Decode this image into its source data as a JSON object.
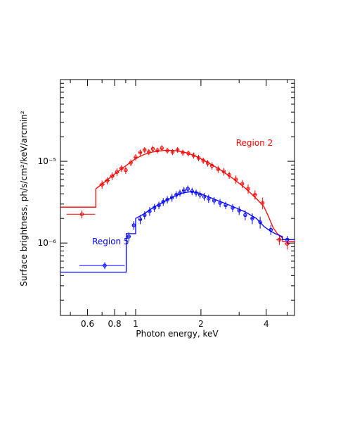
{
  "chart_data": {
    "type": "scatter",
    "title": "",
    "xlabel": "Photon energy, keV",
    "ylabel": "Surface brightness, ph/s/cm²/keV/arcmin²",
    "xscale": "log",
    "yscale": "log",
    "xlim": [
      0.45,
      5.4
    ],
    "ylim": [
      1.3e-07,
      0.0001
    ],
    "grid": false,
    "x_ticks": [
      {
        "value": 0.6,
        "label": "0.6"
      },
      {
        "value": 0.8,
        "label": "0.8"
      },
      {
        "value": 1,
        "label": "1"
      },
      {
        "value": 2,
        "label": "2"
      },
      {
        "value": 4,
        "label": "4"
      }
    ],
    "y_ticks": [
      {
        "value": 1e-06,
        "label": "10⁻⁶"
      },
      {
        "value": 1e-05,
        "label": "10⁻⁵"
      }
    ],
    "series": [
      {
        "name": "Region 2",
        "color": "#ff0000",
        "points": [
          {
            "x": 0.565,
            "y": 2.25e-06,
            "xerr": 0.085,
            "yerr": 2.5e-07
          },
          {
            "x": 0.7,
            "y": 5.2e-06,
            "xerr": 0.02,
            "yerr": 6e-07
          },
          {
            "x": 0.74,
            "y": 5.8e-06,
            "xerr": 0.02,
            "yerr": 6e-07
          },
          {
            "x": 0.78,
            "y": 6.6e-06,
            "xerr": 0.02,
            "yerr": 7e-07
          },
          {
            "x": 0.82,
            "y": 7.4e-06,
            "xerr": 0.02,
            "yerr": 8e-07
          },
          {
            "x": 0.86,
            "y": 8.2e-06,
            "xerr": 0.02,
            "yerr": 8e-07
          },
          {
            "x": 0.9,
            "y": 7.8e-06,
            "xerr": 0.02,
            "yerr": 8e-07
          },
          {
            "x": 0.95,
            "y": 9.6e-06,
            "xerr": 0.02,
            "yerr": 9e-07
          },
          {
            "x": 1.0,
            "y": 1.12e-05,
            "xerr": 0.02,
            "yerr": 1e-06
          },
          {
            "x": 1.05,
            "y": 1.28e-05,
            "xerr": 0.02,
            "yerr": 1.1e-06
          },
          {
            "x": 1.1,
            "y": 1.38e-05,
            "xerr": 0.02,
            "yerr": 1.1e-06
          },
          {
            "x": 1.15,
            "y": 1.3e-05,
            "xerr": 0.02,
            "yerr": 1.1e-06
          },
          {
            "x": 1.2,
            "y": 1.42e-05,
            "xerr": 0.02,
            "yerr": 1.2e-06
          },
          {
            "x": 1.26,
            "y": 1.36e-05,
            "xerr": 0.02,
            "yerr": 1.1e-06
          },
          {
            "x": 1.32,
            "y": 1.45e-05,
            "xerr": 0.02,
            "yerr": 1.2e-06
          },
          {
            "x": 1.4,
            "y": 1.35e-05,
            "xerr": 0.02,
            "yerr": 1.1e-06
          },
          {
            "x": 1.48,
            "y": 1.3e-05,
            "xerr": 0.02,
            "yerr": 1.1e-06
          },
          {
            "x": 1.56,
            "y": 1.38e-05,
            "xerr": 0.02,
            "yerr": 1.1e-06
          },
          {
            "x": 1.65,
            "y": 1.28e-05,
            "xerr": 0.02,
            "yerr": 1.1e-06
          },
          {
            "x": 1.75,
            "y": 1.25e-05,
            "xerr": 0.02,
            "yerr": 1e-06
          },
          {
            "x": 1.85,
            "y": 1.18e-05,
            "xerr": 0.02,
            "yerr": 1e-06
          },
          {
            "x": 1.95,
            "y": 1.1e-05,
            "xerr": 0.02,
            "yerr": 1e-06
          },
          {
            "x": 2.05,
            "y": 1.02e-05,
            "xerr": 0.02,
            "yerr": 9e-07
          },
          {
            "x": 2.15,
            "y": 9.5e-06,
            "xerr": 0.02,
            "yerr": 9e-07
          },
          {
            "x": 2.25,
            "y": 8.8e-06,
            "xerr": 0.03,
            "yerr": 9e-07
          },
          {
            "x": 2.4,
            "y": 8e-06,
            "xerr": 0.03,
            "yerr": 8e-07
          },
          {
            "x": 2.55,
            "y": 7.5e-06,
            "xerr": 0.03,
            "yerr": 8e-07
          },
          {
            "x": 2.7,
            "y": 6.8e-06,
            "xerr": 0.03,
            "yerr": 7e-07
          },
          {
            "x": 2.9,
            "y": 6e-06,
            "xerr": 0.04,
            "yerr": 7e-07
          },
          {
            "x": 3.1,
            "y": 5.3e-06,
            "xerr": 0.04,
            "yerr": 6e-07
          },
          {
            "x": 3.3,
            "y": 4.6e-06,
            "xerr": 0.05,
            "yerr": 6e-07
          },
          {
            "x": 3.55,
            "y": 3.9e-06,
            "xerr": 0.05,
            "yerr": 5e-07
          },
          {
            "x": 3.85,
            "y": 3.1e-06,
            "xerr": 0.06,
            "yerr": 5e-07
          },
          {
            "x": 4.6,
            "y": 1.1e-06,
            "xerr": 0.15,
            "yerr": 1.5e-07
          },
          {
            "x": 5.0,
            "y": 9.8e-07,
            "xerr": 0.15,
            "yerr": 1.5e-07
          }
        ],
        "model": [
          [
            0.45,
            2.75e-06
          ],
          [
            0.655,
            2.75e-06
          ],
          [
            0.655,
            4.6e-06
          ],
          [
            0.72,
            5.6e-06
          ],
          [
            0.8,
            7e-06
          ],
          [
            0.9,
            8.8e-06
          ],
          [
            1.0,
            1.08e-05
          ],
          [
            1.1,
            1.22e-05
          ],
          [
            1.2,
            1.3e-05
          ],
          [
            1.35,
            1.36e-05
          ],
          [
            1.5,
            1.36e-05
          ],
          [
            1.7,
            1.28e-05
          ],
          [
            1.9,
            1.15e-05
          ],
          [
            2.1,
            1e-05
          ],
          [
            2.4,
            8.2e-06
          ],
          [
            2.8,
            6.2e-06
          ],
          [
            3.2,
            4.7e-06
          ],
          [
            3.6,
            3.5e-06
          ],
          [
            3.9,
            2.8e-06
          ],
          [
            4.1,
            2.1e-06
          ],
          [
            4.3,
            1.55e-06
          ],
          [
            4.5,
            1.3e-06
          ],
          [
            4.75,
            1.15e-06
          ],
          [
            4.75,
            1.05e-06
          ],
          [
            5.4,
            1.05e-06
          ]
        ]
      },
      {
        "name": "Region 5",
        "color": "#0000ff",
        "points": [
          {
            "x": 0.72,
            "y": 5.3e-07,
            "xerr": 0.17,
            "yerr": 5e-08
          },
          {
            "x": 0.93,
            "y": 1.2e-06,
            "xerr": 0.02,
            "yerr": 1.5e-07
          },
          {
            "x": 0.98,
            "y": 1.65e-06,
            "xerr": 0.02,
            "yerr": 2e-07
          },
          {
            "x": 1.05,
            "y": 1.95e-06,
            "xerr": 0.02,
            "yerr": 2.5e-07
          },
          {
            "x": 1.1,
            "y": 2.2e-06,
            "xerr": 0.02,
            "yerr": 2.5e-07
          },
          {
            "x": 1.16,
            "y": 2.45e-06,
            "xerr": 0.02,
            "yerr": 3e-07
          },
          {
            "x": 1.22,
            "y": 2.7e-06,
            "xerr": 0.02,
            "yerr": 3e-07
          },
          {
            "x": 1.28,
            "y": 2.9e-06,
            "xerr": 0.02,
            "yerr": 3e-07
          },
          {
            "x": 1.34,
            "y": 3.2e-06,
            "xerr": 0.02,
            "yerr": 3.5e-07
          },
          {
            "x": 1.4,
            "y": 3.4e-06,
            "xerr": 0.02,
            "yerr": 3.5e-07
          },
          {
            "x": 1.47,
            "y": 3.6e-06,
            "xerr": 0.02,
            "yerr": 4e-07
          },
          {
            "x": 1.54,
            "y": 3.9e-06,
            "xerr": 0.02,
            "yerr": 4e-07
          },
          {
            "x": 1.6,
            "y": 4.1e-06,
            "xerr": 0.02,
            "yerr": 4e-07
          },
          {
            "x": 1.67,
            "y": 4.4e-06,
            "xerr": 0.02,
            "yerr": 4.5e-07
          },
          {
            "x": 1.74,
            "y": 4.6e-06,
            "xerr": 0.02,
            "yerr": 4.5e-07
          },
          {
            "x": 1.82,
            "y": 4.3e-06,
            "xerr": 0.02,
            "yerr": 4.5e-07
          },
          {
            "x": 1.9,
            "y": 4.1e-06,
            "xerr": 0.02,
            "yerr": 4e-07
          },
          {
            "x": 1.98,
            "y": 3.9e-06,
            "xerr": 0.02,
            "yerr": 4e-07
          },
          {
            "x": 2.07,
            "y": 3.7e-06,
            "xerr": 0.02,
            "yerr": 4e-07
          },
          {
            "x": 2.17,
            "y": 3.5e-06,
            "xerr": 0.02,
            "yerr": 4e-07
          },
          {
            "x": 2.3,
            "y": 3.3e-06,
            "xerr": 0.03,
            "yerr": 3.5e-07
          },
          {
            "x": 2.45,
            "y": 3.1e-06,
            "xerr": 0.03,
            "yerr": 3.5e-07
          },
          {
            "x": 2.6,
            "y": 2.9e-06,
            "xerr": 0.03,
            "yerr": 3e-07
          },
          {
            "x": 2.8,
            "y": 2.7e-06,
            "xerr": 0.04,
            "yerr": 3e-07
          },
          {
            "x": 3.0,
            "y": 2.5e-06,
            "xerr": 0.04,
            "yerr": 3e-07
          },
          {
            "x": 3.2,
            "y": 2.2e-06,
            "xerr": 0.05,
            "yerr": 3e-07
          },
          {
            "x": 3.45,
            "y": 2e-06,
            "xerr": 0.05,
            "yerr": 3e-07
          },
          {
            "x": 3.75,
            "y": 1.8e-06,
            "xerr": 0.06,
            "yerr": 3e-07
          },
          {
            "x": 4.2,
            "y": 1.45e-06,
            "xerr": 0.1,
            "yerr": 2e-07
          },
          {
            "x": 5.0,
            "y": 1.1e-06,
            "xerr": 0.15,
            "yerr": 1.2e-07
          }
        ],
        "model": [
          [
            0.45,
            4.4e-07
          ],
          [
            0.905,
            4.4e-07
          ],
          [
            0.905,
            1.3e-06
          ],
          [
            1.0,
            1.3e-06
          ],
          [
            1.0,
            2e-06
          ],
          [
            1.1,
            2.3e-06
          ],
          [
            1.2,
            2.7e-06
          ],
          [
            1.35,
            3.2e-06
          ],
          [
            1.5,
            3.7e-06
          ],
          [
            1.65,
            4.1e-06
          ],
          [
            1.8,
            4.25e-06
          ],
          [
            1.95,
            4.1e-06
          ],
          [
            2.1,
            3.8e-06
          ],
          [
            2.4,
            3.3e-06
          ],
          [
            2.8,
            2.8e-06
          ],
          [
            3.2,
            2.4e-06
          ],
          [
            3.6,
            2e-06
          ],
          [
            3.9,
            1.6e-06
          ],
          [
            4.1,
            1.45e-06
          ],
          [
            4.4,
            1.3e-06
          ],
          [
            4.75,
            1.2e-06
          ],
          [
            4.75,
            1.1e-06
          ],
          [
            5.4,
            1.1e-06
          ]
        ]
      }
    ],
    "annotations": [
      {
        "text": "Region 2",
        "color": "#ff0000",
        "x": 2.9,
        "y": 1.55e-05
      },
      {
        "text": "Region 5",
        "color": "#0000ff",
        "x": 0.63,
        "y": 9.6e-07
      }
    ]
  }
}
